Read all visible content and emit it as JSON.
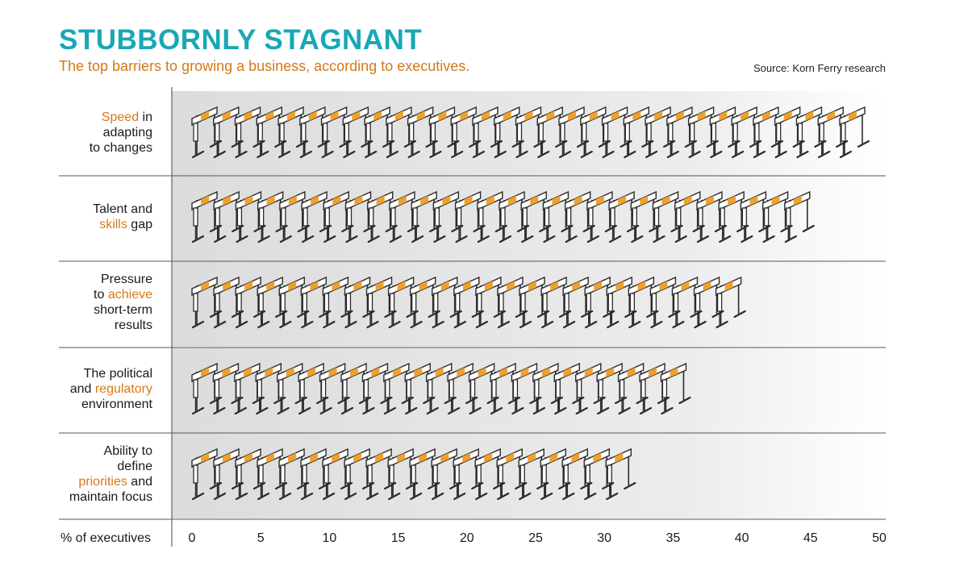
{
  "title": "STUBBORNLY STAGNANT",
  "subtitle": "The top barriers to growing a business, according to executives.",
  "source": "Source: Korn Ferry research",
  "colors": {
    "title": "#19a7b6",
    "accent": "#d4791a",
    "hurdle_bar": "#f0a030",
    "hurdle_line": "#2b2b2b",
    "row_bg": "#e6e6e6"
  },
  "icon": "hurdle-icon",
  "chart_data": {
    "type": "bar",
    "orientation": "horizontal",
    "mark": "pictogram (hurdles)",
    "title": "STUBBORNLY STAGNANT",
    "xlabel": "% of executives",
    "xlim": [
      0,
      50
    ],
    "xticks": [
      0,
      5,
      10,
      15,
      20,
      25,
      30,
      35,
      40,
      45,
      50
    ],
    "categories": [
      "Speed in adapting to changes",
      "Talent and skills gap",
      "Pressure to achieve short-term results",
      "The political and regulatory environment",
      "Ability to define priorities and maintain focus"
    ],
    "category_label_parts": [
      [
        [
          "Speed",
          true
        ],
        [
          " in",
          false
        ],
        [
          "\nadapting",
          false
        ],
        [
          "\nto changes",
          false
        ]
      ],
      [
        [
          "Talent and",
          false
        ],
        [
          "\n",
          false
        ],
        [
          "skills",
          true
        ],
        [
          " gap",
          false
        ]
      ],
      [
        [
          "Pressure",
          false
        ],
        [
          "\nto ",
          false
        ],
        [
          "achieve",
          true
        ],
        [
          "\nshort-term",
          false
        ],
        [
          "\nresults",
          false
        ]
      ],
      [
        [
          "The political",
          false
        ],
        [
          "\nand ",
          false
        ],
        [
          "regulatory",
          true
        ],
        [
          "\nenvironment",
          false
        ]
      ],
      [
        [
          "Ability to",
          false
        ],
        [
          "\ndefine",
          false
        ],
        [
          "\n",
          false
        ],
        [
          "priorities",
          true
        ],
        [
          " and",
          false
        ],
        [
          "\nmaintain focus",
          false
        ]
      ]
    ],
    "values": [
      49,
      45,
      40,
      36,
      32
    ]
  }
}
